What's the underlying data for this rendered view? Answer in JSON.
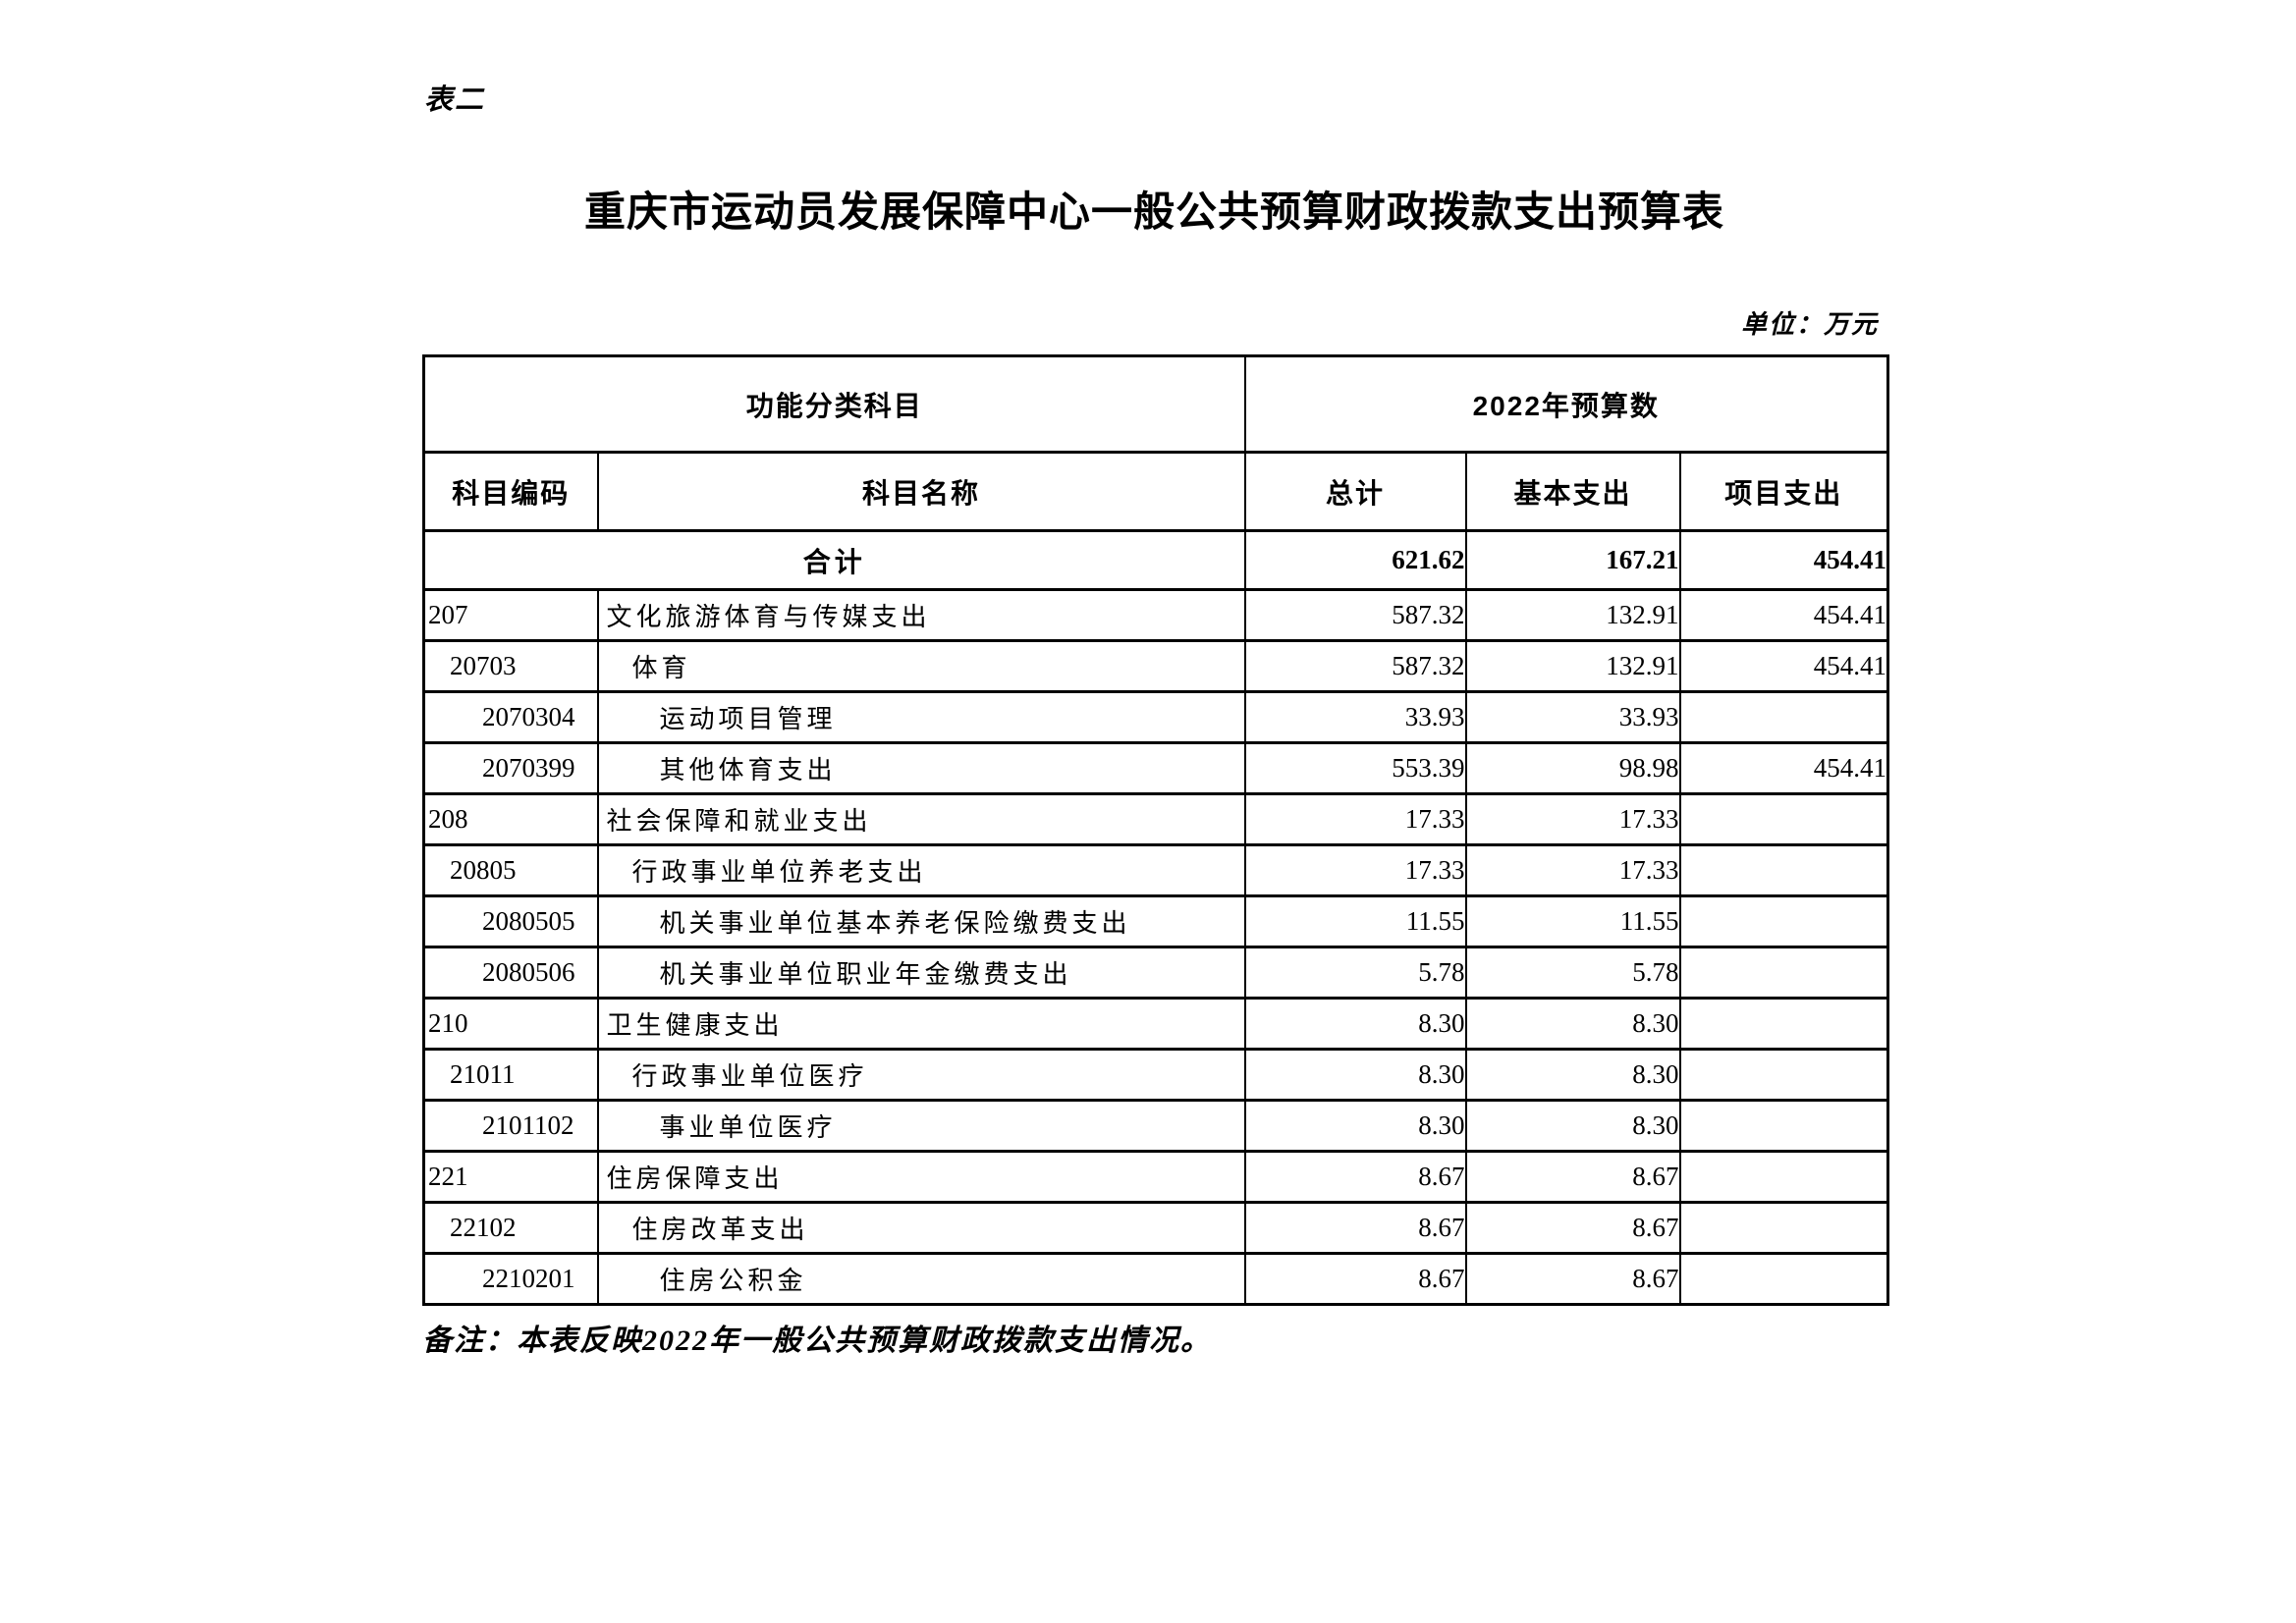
{
  "page": {
    "table_label": "表二",
    "title": "重庆市运动员发展保障中心一般公共预算财政拨款支出预算表",
    "unit_note": "单位：万元",
    "footer_note": "备注：本表反映2022年一般公共预算财政拨款支出情况。"
  },
  "table": {
    "header": {
      "group_function": "功能分类科目",
      "group_budget": "2022年预算数",
      "col_code": "科目编码",
      "col_name": "科目名称",
      "col_total": "总计",
      "col_basic": "基本支出",
      "col_project": "项目支出"
    },
    "total_row": {
      "label": "合计",
      "total": "621.62",
      "basic": "167.21",
      "project": "454.41"
    },
    "rows": [
      {
        "code": "207",
        "name": "文化旅游体育与传媒支出",
        "indent": 0,
        "total": "587.32",
        "basic": "132.91",
        "project": "454.41"
      },
      {
        "code": "20703",
        "name": "体育",
        "indent": 1,
        "total": "587.32",
        "basic": "132.91",
        "project": "454.41"
      },
      {
        "code": "2070304",
        "name": "运动项目管理",
        "indent": 2,
        "total": "33.93",
        "basic": "33.93",
        "project": ""
      },
      {
        "code": "2070399",
        "name": "其他体育支出",
        "indent": 2,
        "total": "553.39",
        "basic": "98.98",
        "project": "454.41"
      },
      {
        "code": "208",
        "name": "社会保障和就业支出",
        "indent": 0,
        "total": "17.33",
        "basic": "17.33",
        "project": ""
      },
      {
        "code": "20805",
        "name": "行政事业单位养老支出",
        "indent": 1,
        "total": "17.33",
        "basic": "17.33",
        "project": ""
      },
      {
        "code": "2080505",
        "name": "机关事业单位基本养老保险缴费支出",
        "indent": 2,
        "total": "11.55",
        "basic": "11.55",
        "project": ""
      },
      {
        "code": "2080506",
        "name": "机关事业单位职业年金缴费支出",
        "indent": 2,
        "total": "5.78",
        "basic": "5.78",
        "project": ""
      },
      {
        "code": "210",
        "name": "卫生健康支出",
        "indent": 0,
        "total": "8.30",
        "basic": "8.30",
        "project": ""
      },
      {
        "code": "21011",
        "name": "行政事业单位医疗",
        "indent": 1,
        "total": "8.30",
        "basic": "8.30",
        "project": ""
      },
      {
        "code": "2101102",
        "name": "事业单位医疗",
        "indent": 2,
        "total": "8.30",
        "basic": "8.30",
        "project": ""
      },
      {
        "code": "221",
        "name": "住房保障支出",
        "indent": 0,
        "total": "8.67",
        "basic": "8.67",
        "project": ""
      },
      {
        "code": "22102",
        "name": "住房改革支出",
        "indent": 1,
        "total": "8.67",
        "basic": "8.67",
        "project": ""
      },
      {
        "code": "2210201",
        "name": "住房公积金",
        "indent": 2,
        "total": "8.67",
        "basic": "8.67",
        "project": ""
      }
    ]
  }
}
